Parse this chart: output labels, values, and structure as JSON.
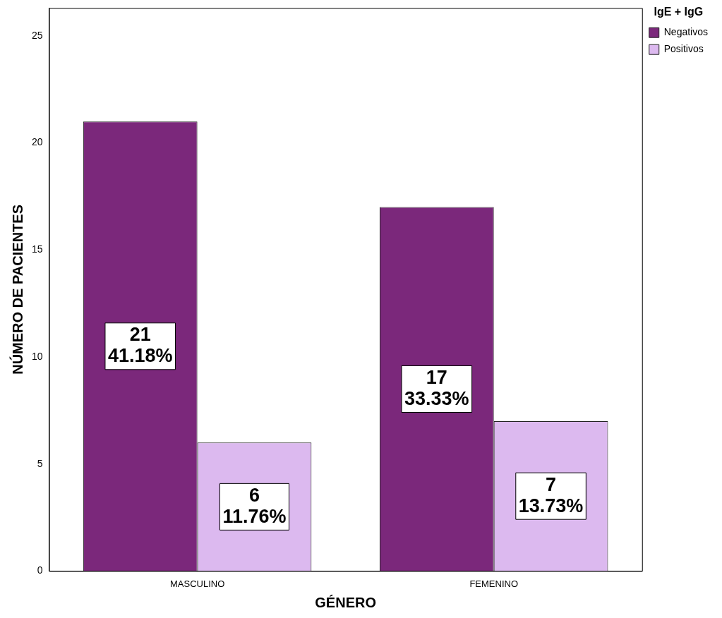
{
  "chart_data": {
    "type": "bar",
    "xlabel": "GÉNERO",
    "ylabel": "NÚMERO DE PACIENTES",
    "legend_title": "IgE + IgG",
    "categories": [
      "MASCULINO",
      "FEMENINO"
    ],
    "series": [
      {
        "name": "Negativos",
        "color": "#7b287b",
        "values": [
          21,
          17
        ],
        "value_labels": [
          "21\n41.18%",
          "17\n33.33%"
        ]
      },
      {
        "name": "Positivos",
        "color": "#dcb9ef",
        "values": [
          6,
          7
        ],
        "value_labels": [
          "6\n11.76%",
          "7\n13.73%"
        ]
      }
    ],
    "ylim": [
      0,
      26.3
    ],
    "yticks": [
      0,
      5,
      10,
      15,
      20,
      25
    ],
    "grid": false,
    "legend": "right"
  }
}
